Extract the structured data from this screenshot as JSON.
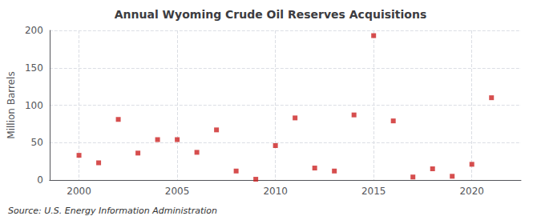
{
  "chart_data": {
    "type": "scatter",
    "title": "Annual Wyoming Crude Oil Reserves Acquisitions",
    "ylabel": "Million Barrels",
    "annotation": "Source: U.S. Energy Information Administration",
    "x": [
      2000,
      2001,
      2002,
      2003,
      2004,
      2005,
      2006,
      2007,
      2008,
      2009,
      2010,
      2011,
      2012,
      2013,
      2014,
      2015,
      2016,
      2017,
      2018,
      2019,
      2020,
      2021
    ],
    "values": [
      33,
      23,
      81,
      36,
      54,
      54,
      37,
      67,
      12,
      1,
      46,
      83,
      16,
      12,
      87,
      193,
      79,
      4,
      15,
      5,
      21,
      110
    ],
    "color": "#cc2222",
    "marker": "square",
    "xlim": [
      1998.5,
      2022.5
    ],
    "ylim": [
      0,
      200
    ],
    "xticks": [
      2000,
      2005,
      2010,
      2015,
      2020
    ],
    "yticks": [
      0,
      50,
      100,
      150,
      200
    ],
    "grid": true
  }
}
